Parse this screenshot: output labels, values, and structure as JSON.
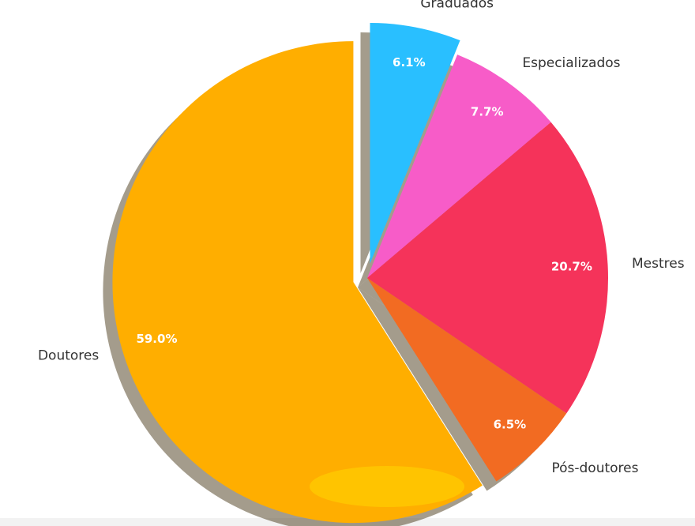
{
  "chart_data": {
    "type": "pie",
    "categories": [
      "Graduados",
      "Especializados",
      "Mestres",
      "Pós-doutores",
      "Doutores"
    ],
    "values": [
      6.1,
      7.7,
      20.7,
      6.5,
      59.0
    ],
    "value_labels": [
      "6.1%",
      "7.7%",
      "20.7%",
      "6.5%",
      "59.0%"
    ],
    "colors": [
      "#29bfff",
      "#f75cc8",
      "#f5335a",
      "#f26b22",
      "#ffae00"
    ],
    "explode": [
      0.06,
      0,
      0,
      0,
      0.06
    ]
  }
}
